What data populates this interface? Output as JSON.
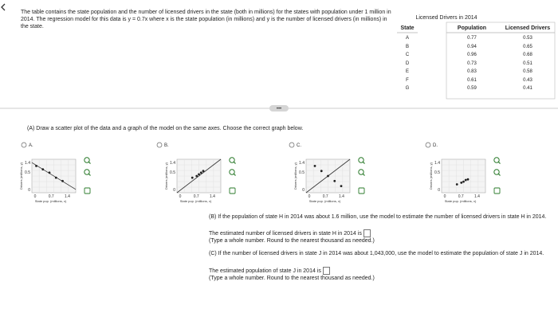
{
  "problem": {
    "intro": "The table contains the state population and the number of licensed drivers in the state (both in millions) for the states with population under 1 million in 2014. The regression model for this data is y = 0.7x where x is the state population (in millions) and y is the number of licensed drivers (in millions) in the state."
  },
  "table": {
    "title": "Licensed Drivers in 2014",
    "headers": [
      "State",
      "Population",
      "Licensed Drivers"
    ],
    "rows": [
      [
        "A",
        0.77,
        0.53
      ],
      [
        "B",
        0.94,
        0.65
      ],
      [
        "C",
        0.96,
        0.68
      ],
      [
        "D",
        0.73,
        0.51
      ],
      [
        "E",
        0.83,
        0.58
      ],
      [
        "F",
        0.61,
        0.43
      ],
      [
        "G",
        0.59,
        0.41
      ]
    ]
  },
  "part_a": {
    "prompt": "(A) Draw a scatter plot of the data and a graph of the model on the same axes. Choose the correct graph below.",
    "options": [
      "A.",
      "B.",
      "C.",
      "D."
    ],
    "graph": {
      "y_axis": "Drivers (millions, y)",
      "x_axis": "State pop. (millions, x)",
      "x_ticks": [
        "0",
        "0.7",
        "1.4"
      ],
      "y_ticks": [
        "1.4",
        "0.5",
        "0"
      ]
    }
  },
  "part_b": {
    "prompt": "(B) If the population of state H in 2014 was about 1.6 million, use the model to estimate the number of licensed drivers in state H in 2014.",
    "answer_text": "The estimated number of licensed drivers in state H in 2014 is",
    "hint": "(Type a whole number. Round to the nearest thousand as needed.)"
  },
  "part_c": {
    "prompt": "(C) If the number of licensed drivers in state J in 2014 was about 1,043,000, use the model to estimate the population of state J in 2014.",
    "answer_text": "The estimated population of state J in 2014 is",
    "hint": "(Type a whole number. Round to the nearest thousand as needed.)"
  }
}
